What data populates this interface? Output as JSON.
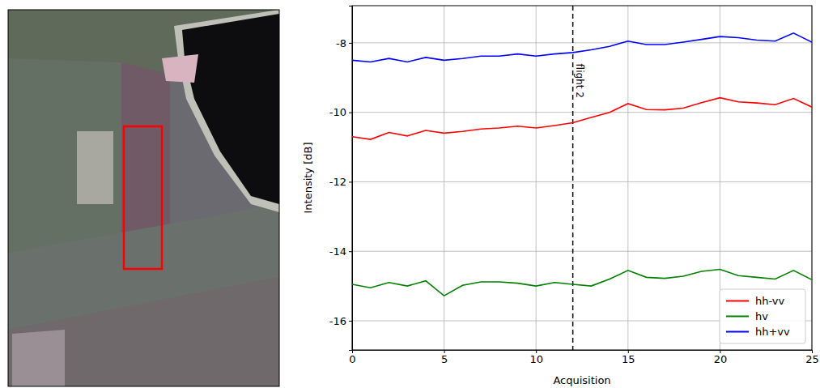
{
  "chart_data": {
    "type": "line",
    "x_label": "Acquisition",
    "y_label": "Intensity [dB]",
    "x": [
      0,
      1,
      2,
      3,
      4,
      5,
      6,
      7,
      8,
      9,
      10,
      11,
      12,
      13,
      14,
      15,
      16,
      17,
      18,
      19,
      20,
      21,
      22,
      23,
      24,
      25
    ],
    "series": [
      {
        "name": "hh-vv",
        "color": "#ff0000",
        "values": [
          -10.7,
          -10.78,
          -10.58,
          -10.68,
          -10.52,
          -10.6,
          -10.55,
          -10.48,
          -10.45,
          -10.4,
          -10.45,
          -10.38,
          -10.3,
          -10.15,
          -10.0,
          -9.75,
          -9.92,
          -9.93,
          -9.88,
          -9.72,
          -9.58,
          -9.7,
          -9.73,
          -9.78,
          -9.6,
          -9.85
        ]
      },
      {
        "name": "hv",
        "color": "#008000",
        "values": [
          -14.95,
          -15.05,
          -14.9,
          -15.0,
          -14.85,
          -15.28,
          -14.98,
          -14.88,
          -14.88,
          -14.92,
          -15.0,
          -14.9,
          -14.95,
          -15.0,
          -14.8,
          -14.55,
          -14.75,
          -14.78,
          -14.72,
          -14.58,
          -14.52,
          -14.7,
          -14.75,
          -14.8,
          -14.55,
          -14.82
        ]
      },
      {
        "name": "hh+vv",
        "color": "#0000ff",
        "values": [
          -8.5,
          -8.55,
          -8.45,
          -8.55,
          -8.42,
          -8.5,
          -8.45,
          -8.38,
          -8.38,
          -8.32,
          -8.38,
          -8.32,
          -8.28,
          -8.2,
          -8.1,
          -7.95,
          -8.05,
          -8.05,
          -7.98,
          -7.9,
          -7.82,
          -7.85,
          -7.92,
          -7.95,
          -7.72,
          -7.98
        ]
      }
    ],
    "annotations": [
      {
        "x": 12,
        "text": "flight 2"
      }
    ],
    "xlim": [
      0,
      25
    ],
    "xticks": [
      0,
      5,
      10,
      15,
      20,
      25
    ],
    "ylim": [
      -16.84,
      -6.93
    ],
    "yticks": [
      -16,
      -14,
      -12,
      -10,
      -8
    ],
    "grid": true,
    "legend": "lower right"
  }
}
